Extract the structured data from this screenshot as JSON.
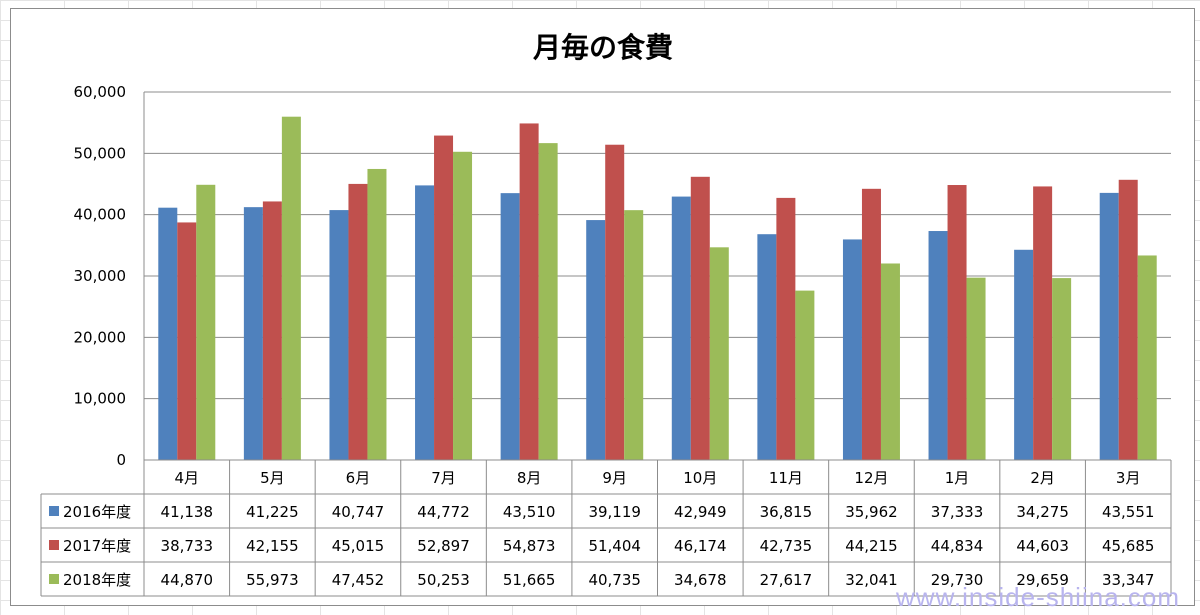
{
  "chart_data": {
    "type": "bar",
    "title": "月毎の食費",
    "categories": [
      "4月",
      "5月",
      "6月",
      "7月",
      "8月",
      "9月",
      "10月",
      "11月",
      "12月",
      "1月",
      "2月",
      "3月"
    ],
    "series": [
      {
        "name": "2016年度",
        "color": "#4f81bd",
        "values": [
          41138,
          41225,
          40747,
          44772,
          43510,
          39119,
          42949,
          36815,
          35962,
          37333,
          34275,
          43551
        ],
        "labels": [
          "41,138",
          "41,225",
          "40,747",
          "44,772",
          "43,510",
          "39,119",
          "42,949",
          "36,815",
          "35,962",
          "37,333",
          "34,275",
          "43,551"
        ]
      },
      {
        "name": "2017年度",
        "color": "#c0504d",
        "values": [
          38733,
          42155,
          45015,
          52897,
          54873,
          51404,
          46174,
          42735,
          44215,
          44834,
          44603,
          45685
        ],
        "labels": [
          "38,733",
          "42,155",
          "45,015",
          "52,897",
          "54,873",
          "51,404",
          "46,174",
          "42,735",
          "44,215",
          "44,834",
          "44,603",
          "45,685"
        ]
      },
      {
        "name": "2018年度",
        "color": "#9bbb59",
        "values": [
          44870,
          55973,
          47452,
          50253,
          51665,
          40735,
          34678,
          27617,
          32041,
          29730,
          29659,
          33347
        ],
        "labels": [
          "44,870",
          "55,973",
          "47,452",
          "50,253",
          "51,665",
          "40,735",
          "34,678",
          "27,617",
          "32,041",
          "29,730",
          "29,659",
          "33,347"
        ]
      }
    ],
    "ylim": [
      0,
      60000
    ],
    "y_ticks": [
      0,
      10000,
      20000,
      30000,
      40000,
      50000,
      60000
    ],
    "y_tick_labels": [
      "0",
      "10,000",
      "20,000",
      "30,000",
      "40,000",
      "50,000",
      "60,000"
    ],
    "grid": true,
    "legend": "data-table",
    "xlabel": "",
    "ylabel": ""
  },
  "watermark": "www.inside-shiina.com"
}
